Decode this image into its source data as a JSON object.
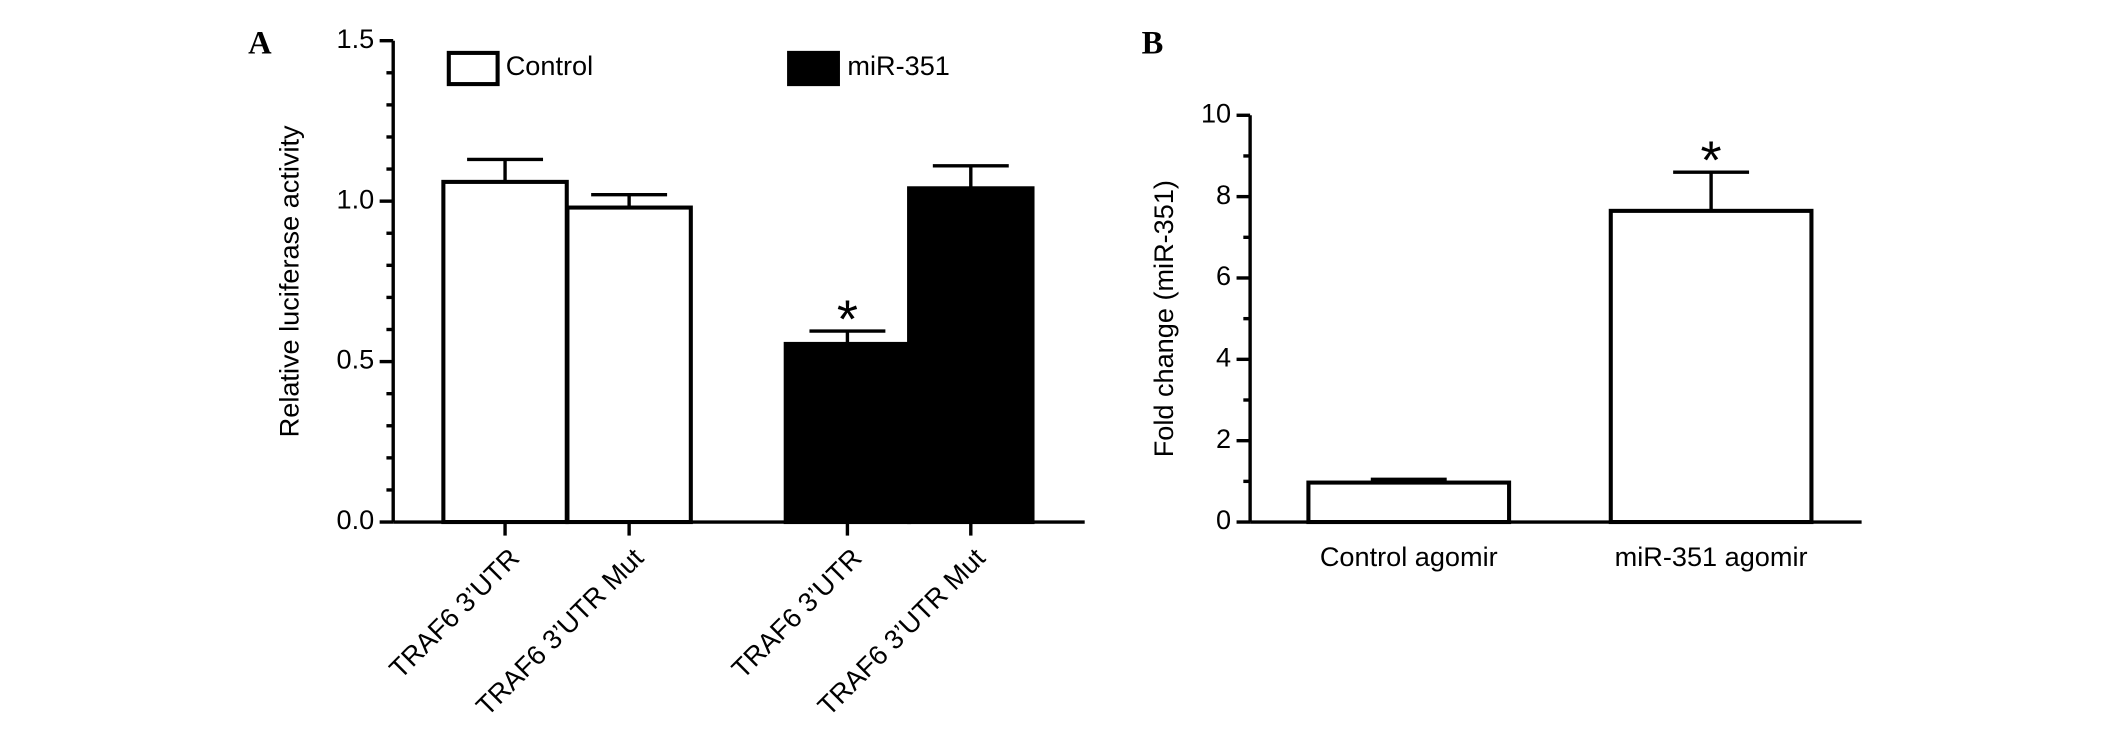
{
  "chart_data": [
    {
      "type": "bar",
      "panel": "A",
      "ylabel": "Relative luciferase activity",
      "categories": [
        "TRAF6 3’UTR",
        "TRAF6 3’UTR Mut",
        "TRAF6 3’UTR",
        "TRAF6 3’UTR Mut"
      ],
      "series": [
        {
          "name": "Control",
          "color": "#ffffff",
          "values": [
            1.06,
            0.98,
            null,
            null
          ],
          "errors": [
            0.07,
            0.04,
            null,
            null
          ]
        },
        {
          "name": "miR-351",
          "color": "#000000",
          "values": [
            null,
            null,
            0.555,
            1.04
          ],
          "errors": [
            null,
            null,
            0.04,
            0.07
          ]
        }
      ],
      "significance": [
        null,
        null,
        "*",
        null
      ],
      "ylim": [
        0,
        1.5
      ],
      "yticks": [
        {
          "value": 0,
          "label": "0.0"
        },
        0.5,
        {
          "value": 1,
          "label": "1.0"
        },
        1.5
      ],
      "yminorticks": [
        0.1,
        0.2,
        0.3,
        0.4,
        0.6,
        0.7,
        0.8,
        0.9,
        1.1,
        1.2,
        1.3,
        1.4
      ]
    },
    {
      "type": "bar",
      "panel": "B",
      "ylabel": "Fold change (miR-351)",
      "categories": [
        "Control agomir",
        "miR-351 agomir"
      ],
      "series": [
        {
          "color": "#ffffff",
          "values": [
            0.97,
            7.65
          ],
          "errors": [
            0.08,
            0.95
          ]
        }
      ],
      "significance": [
        null,
        "*"
      ],
      "ylim": [
        0,
        10
      ],
      "yticks": [
        0,
        2,
        4,
        6,
        8,
        10
      ],
      "yminorticks": [
        1,
        3,
        5,
        7,
        9
      ]
    }
  ]
}
